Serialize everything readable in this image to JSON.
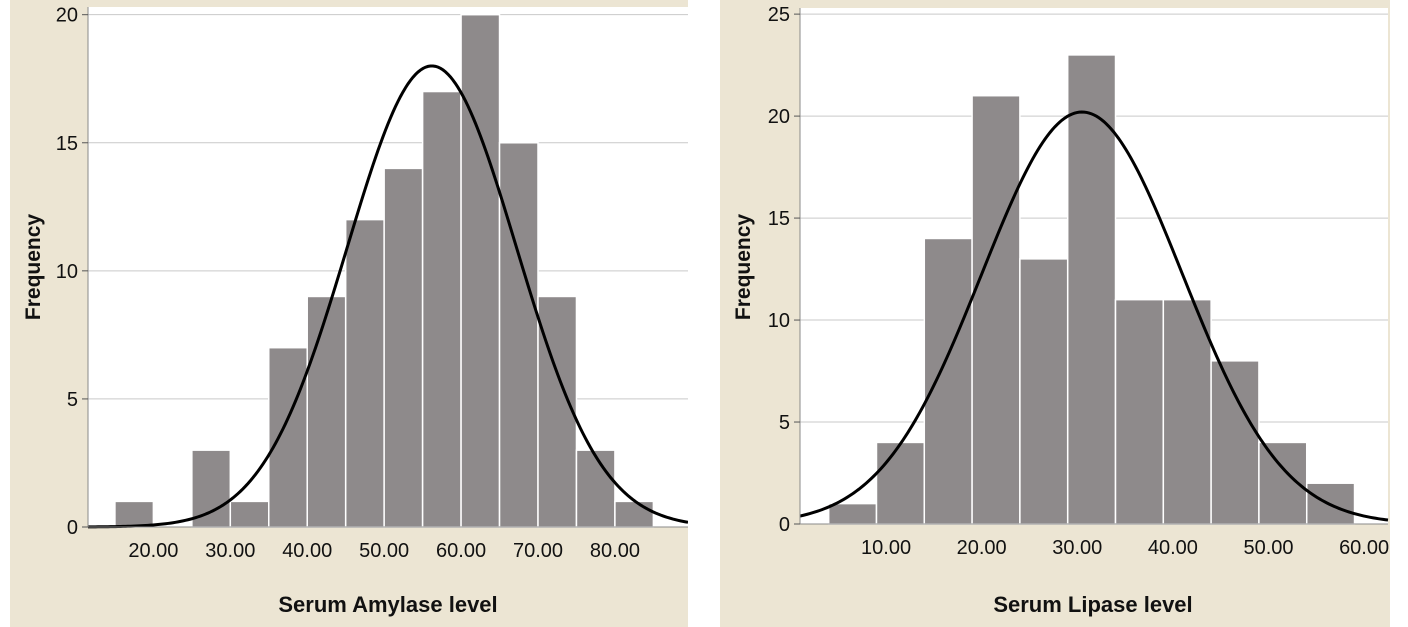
{
  "chart_data": [
    {
      "type": "bar",
      "subtype": "histogram-with-normal-curve",
      "xlabel": "Serum Amylase level",
      "ylabel": "Frequency",
      "xlim": [
        11.5,
        89.5
      ],
      "ylim": [
        0,
        20.3
      ],
      "yticks": [
        0,
        5,
        10,
        15,
        20
      ],
      "xticks": [
        20,
        30,
        40,
        50,
        60,
        70,
        80
      ],
      "xtick_labels": [
        "20.00",
        "30.00",
        "40.00",
        "50.00",
        "60.00",
        "70.00",
        "80.00"
      ],
      "bin_width": 5,
      "bin_starts": [
        15,
        20,
        25,
        30,
        35,
        40,
        45,
        50,
        55,
        60,
        65,
        70,
        75,
        80
      ],
      "values": [
        1,
        0,
        3,
        1,
        7,
        9,
        12,
        14,
        17,
        20,
        15,
        9,
        3,
        1
      ],
      "normal_curve": {
        "mean": 56.2,
        "peak": 18.0,
        "sd": 11.0
      },
      "grid": "horizontal",
      "colors": {
        "plot_bg": "#ffffff",
        "frame_bg": "#ece5d3",
        "bar": "#8e8a8b",
        "bar_edge": "#ffffff",
        "grid": "#c9c9c9",
        "curve": "#000000"
      }
    },
    {
      "type": "bar",
      "subtype": "histogram-with-normal-curve",
      "xlabel": "Serum Lipase level",
      "ylabel": "Frequency",
      "xlim": [
        1.0,
        62.5
      ],
      "ylim": [
        0,
        25.3
      ],
      "yticks": [
        0,
        5,
        10,
        15,
        20,
        25
      ],
      "xticks": [
        10,
        20,
        30,
        40,
        50,
        60
      ],
      "xtick_labels": [
        "10.00",
        "20.00",
        "30.00",
        "40.00",
        "50.00",
        "60.00"
      ],
      "bin_width": 5,
      "bin_starts": [
        4,
        9,
        14,
        19,
        24,
        29,
        34,
        39,
        44,
        49,
        54
      ],
      "values": [
        1,
        4,
        14,
        21,
        13,
        23,
        11,
        11,
        8,
        4,
        2
      ],
      "normal_curve": {
        "mean": 30.5,
        "peak": 20.2,
        "sd": 10.5
      },
      "grid": "horizontal",
      "colors": {
        "plot_bg": "#ffffff",
        "frame_bg": "#ece5d3",
        "bar": "#8e8a8b",
        "bar_edge": "#ffffff",
        "grid": "#c9c9c9",
        "curve": "#000000"
      }
    }
  ]
}
